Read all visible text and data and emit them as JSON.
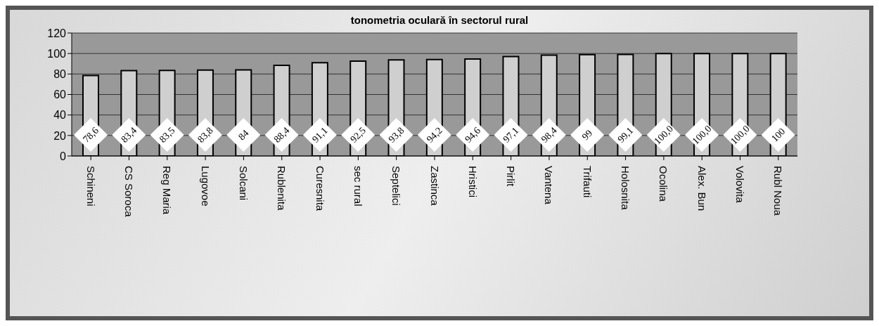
{
  "chart_data": {
    "type": "bar",
    "title": "tonometria oculară  în sectorul rural",
    "categories": [
      "Schineni",
      "CS Soroca",
      "Reg Maria",
      "Lugovoe",
      "Solcani",
      "Rublenita",
      "Curesnita",
      "sec rural",
      "Septelici",
      "Zastinca",
      "Hristici",
      "Pirlit",
      "Vantena",
      "Trifauti",
      "Holosnita",
      "Ocolina",
      "Alex. Bun",
      "Volovita",
      "Rubl Noua"
    ],
    "values": [
      78.6,
      83.4,
      83.5,
      83.8,
      84,
      88.4,
      91.1,
      92.5,
      93.8,
      94.2,
      94.6,
      97.1,
      98.4,
      99,
      99.1,
      100,
      100,
      100,
      100
    ],
    "value_labels": [
      "78,6",
      "83,4",
      "83,5",
      "83,8",
      "84",
      "88,4",
      "91,1",
      "92,5",
      "93,8",
      "94,2",
      "94,6",
      "97,1",
      "98,4",
      "99",
      "99,1",
      "100,0",
      "100,0",
      "100,0",
      "100"
    ],
    "color": "#cfcfcf",
    "ylim": [
      0,
      120
    ],
    "yticks": [
      0,
      20,
      40,
      60,
      80,
      100,
      120
    ],
    "grid": "y",
    "legend": false
  }
}
